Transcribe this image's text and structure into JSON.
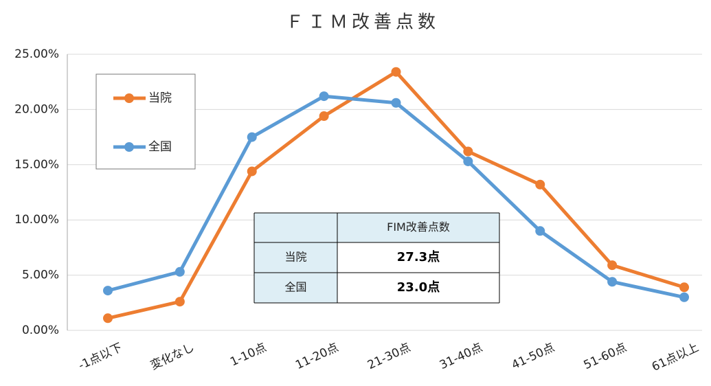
{
  "chart_data": {
    "type": "line",
    "title": "ＦＩＭ改善点数",
    "categories": [
      "-1点以下",
      "変化なし",
      "1-10点",
      "11-20点",
      "21-30点",
      "31-40点",
      "41-50点",
      "51-60点",
      "61点以上"
    ],
    "series": [
      {
        "name": "当院",
        "color": "#ed7d31",
        "values": [
          1.1,
          2.6,
          14.4,
          19.4,
          23.4,
          16.2,
          13.2,
          5.9,
          3.9
        ]
      },
      {
        "name": "全国",
        "color": "#5b9bd5",
        "values": [
          3.6,
          5.3,
          17.5,
          21.2,
          20.6,
          15.3,
          9.0,
          4.4,
          3.0
        ]
      }
    ],
    "ylim": [
      0,
      25
    ],
    "yticks": [
      {
        "value": 0,
        "label": "0.00%"
      },
      {
        "value": 5,
        "label": "5.00%"
      },
      {
        "value": 10,
        "label": "10.00%"
      },
      {
        "value": 15,
        "label": "15.00%"
      },
      {
        "value": 20,
        "label": "20.00%"
      },
      {
        "value": 25,
        "label": "25.00%"
      }
    ],
    "grid": true,
    "legend": "upper left",
    "table": {
      "header": "FIM改善点数",
      "rows": [
        [
          "当院",
          "27.3点"
        ],
        [
          "全国",
          "23.0点"
        ]
      ]
    }
  }
}
